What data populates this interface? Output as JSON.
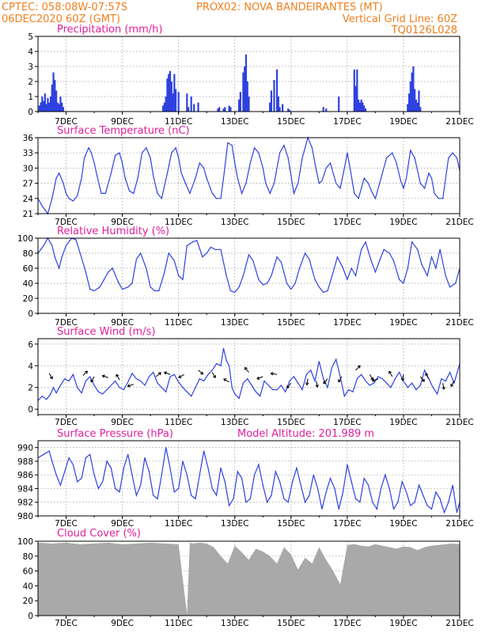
{
  "header": {
    "line1_left": "CPTEC:   058:08W-07:57S",
    "line1_right": "PROX02: NOVA BANDEIRANTES (MT)",
    "line2_left": "06DEC2020 60Z (GMT)",
    "line2_right": "Vertical Grid Line: 60Z",
    "line3_right": "TQ0126L028"
  },
  "colors": {
    "header": "#f07f1e",
    "title": "#e0209a",
    "line": "#2e41e0",
    "bar": "#2e41e0",
    "cloud": "#a9a9a9",
    "arrow": "#000000"
  },
  "x_axis": {
    "ticks": [
      "7DEC",
      "9DEC",
      "11DEC",
      "13DEC",
      "15DEC",
      "17DEC",
      "19DEC",
      "21DEC"
    ],
    "tick_days": [
      7,
      9,
      11,
      13,
      15,
      17,
      19,
      21
    ],
    "xlim": [
      6.0,
      21.0
    ]
  },
  "chart_data": [
    {
      "type": "bar",
      "title": "Precipitation (mm/h)",
      "ylim": [
        0,
        5
      ],
      "yticks": [
        0,
        1,
        2,
        3,
        4,
        5
      ],
      "x": [
        6.05,
        6.1,
        6.15,
        6.2,
        6.25,
        6.3,
        6.35,
        6.4,
        6.45,
        6.5,
        6.55,
        6.6,
        6.65,
        6.7,
        6.75,
        6.8,
        6.85,
        6.9,
        10.45,
        10.5,
        10.55,
        10.6,
        10.65,
        10.7,
        10.75,
        10.8,
        10.85,
        10.9,
        11.0,
        11.3,
        11.35,
        11.45,
        11.55,
        11.7,
        12.4,
        12.45,
        12.6,
        12.65,
        12.8,
        12.85,
        13.15,
        13.2,
        13.3,
        13.35,
        13.4,
        13.45,
        13.5,
        14.25,
        14.3,
        14.4,
        14.5,
        14.55,
        14.6,
        14.7,
        14.9,
        14.95,
        16.15,
        16.25,
        16.7,
        17.25,
        17.3,
        17.35,
        17.4,
        17.45,
        17.5,
        17.55,
        17.6,
        17.65,
        19.15,
        19.2,
        19.25,
        19.3,
        19.35,
        19.4,
        19.45,
        19.5,
        19.55,
        19.6
      ],
      "values": [
        0.4,
        0.6,
        1.0,
        0.7,
        1.2,
        0.5,
        0.9,
        0.6,
        1.0,
        1.8,
        2.6,
        2.1,
        1.4,
        0.6,
        0.5,
        1.0,
        0.6,
        0.3,
        0.4,
        0.6,
        1.0,
        2.2,
        2.5,
        2.7,
        2.0,
        1.2,
        2.5,
        1.5,
        1.3,
        1.2,
        0.3,
        1.0,
        0.5,
        0.6,
        0.2,
        0.3,
        0.2,
        0.3,
        0.4,
        0.3,
        0.8,
        1.3,
        2.6,
        3.0,
        3.8,
        2.0,
        1.0,
        0.6,
        1.4,
        2.1,
        2.8,
        1.0,
        0.3,
        0.5,
        0.2,
        0.1,
        0.3,
        0.2,
        1.0,
        2.8,
        1.7,
        2.8,
        0.8,
        0.6,
        0.8,
        0.6,
        0.4,
        0.2,
        0.5,
        1.2,
        2.0,
        2.6,
        3.0,
        1.5,
        0.8,
        0.6,
        1.4,
        0.3
      ]
    },
    {
      "type": "line",
      "title": "Surface Temperature (nC)",
      "ylim": [
        21,
        36
      ],
      "yticks": [
        21,
        24,
        27,
        30,
        33,
        36
      ],
      "x": [
        6.0,
        6.15,
        6.35,
        6.5,
        6.65,
        6.75,
        6.9,
        7.0,
        7.1,
        7.25,
        7.4,
        7.55,
        7.65,
        7.8,
        7.9,
        8.0,
        8.1,
        8.25,
        8.4,
        8.6,
        8.75,
        8.9,
        9.0,
        9.1,
        9.25,
        9.4,
        9.55,
        9.7,
        9.85,
        10.0,
        10.1,
        10.25,
        10.4,
        10.6,
        10.75,
        10.9,
        11.0,
        11.1,
        11.25,
        11.4,
        11.6,
        11.75,
        11.9,
        12.0,
        12.2,
        12.35,
        12.5,
        12.6,
        12.75,
        12.9,
        13.0,
        13.1,
        13.25,
        13.4,
        13.55,
        13.7,
        13.85,
        14.0,
        14.1,
        14.25,
        14.4,
        14.6,
        14.75,
        14.9,
        15.0,
        15.1,
        15.25,
        15.4,
        15.6,
        15.75,
        15.9,
        16.0,
        16.1,
        16.25,
        16.4,
        16.6,
        16.75,
        16.9,
        17.0,
        17.1,
        17.25,
        17.4,
        17.6,
        17.75,
        17.9,
        18.0,
        18.1,
        18.25,
        18.4,
        18.6,
        18.75,
        18.9,
        19.0,
        19.1,
        19.25,
        19.4,
        19.6,
        19.75,
        19.9,
        20.0,
        20.1,
        20.25,
        20.4,
        20.6,
        20.75,
        20.9,
        21.0
      ],
      "values": [
        24.0,
        22.5,
        21.0,
        24.0,
        28.0,
        29.0,
        27.0,
        25.0,
        24.0,
        23.5,
        24.5,
        28.0,
        32.0,
        34.0,
        33.0,
        31.0,
        28.5,
        25.0,
        25.0,
        29.0,
        32.5,
        33.0,
        31.0,
        28.0,
        25.5,
        25.0,
        28.0,
        33.0,
        34.0,
        32.0,
        28.5,
        25.0,
        24.0,
        29.0,
        33.0,
        34.0,
        32.0,
        29.0,
        27.0,
        25.0,
        28.0,
        31.0,
        30.0,
        28.0,
        25.0,
        24.0,
        24.0,
        28.0,
        35.0,
        34.5,
        31.0,
        28.0,
        25.0,
        27.0,
        31.0,
        34.0,
        33.0,
        30.0,
        27.0,
        25.0,
        27.0,
        33.0,
        34.5,
        32.0,
        28.5,
        25.0,
        27.0,
        32.0,
        36.0,
        34.0,
        29.5,
        27.0,
        27.5,
        30.0,
        31.0,
        27.0,
        26.0,
        30.0,
        33.0,
        30.0,
        25.0,
        24.0,
        28.0,
        27.0,
        25.0,
        24.0,
        26.0,
        29.0,
        32.0,
        33.0,
        31.0,
        27.5,
        26.0,
        28.0,
        33.5,
        32.0,
        27.0,
        26.0,
        29.0,
        28.0,
        25.0,
        24.0,
        24.0,
        32.0,
        33.0,
        32.0,
        29.5
      ]
    },
    {
      "type": "line",
      "title": "Relative Humidity (%)",
      "ylim": [
        0,
        100
      ],
      "yticks": [
        0,
        20,
        40,
        60,
        80,
        100
      ],
      "x": [
        6.0,
        6.2,
        6.35,
        6.5,
        6.6,
        6.75,
        6.85,
        7.0,
        7.2,
        7.35,
        7.5,
        7.7,
        7.85,
        8.0,
        8.2,
        8.35,
        8.5,
        8.65,
        8.85,
        9.0,
        9.2,
        9.35,
        9.5,
        9.65,
        9.85,
        10.0,
        10.15,
        10.3,
        10.5,
        10.65,
        10.85,
        11.0,
        11.15,
        11.3,
        11.5,
        11.65,
        11.85,
        12.0,
        12.15,
        12.3,
        12.5,
        12.7,
        12.85,
        13.0,
        13.15,
        13.3,
        13.5,
        13.65,
        13.85,
        14.0,
        14.15,
        14.3,
        14.5,
        14.65,
        14.85,
        15.0,
        15.15,
        15.3,
        15.5,
        15.65,
        15.85,
        16.0,
        16.15,
        16.3,
        16.5,
        16.65,
        16.85,
        17.0,
        17.15,
        17.3,
        17.5,
        17.65,
        17.85,
        18.0,
        18.15,
        18.3,
        18.5,
        18.65,
        18.85,
        19.0,
        19.15,
        19.3,
        19.5,
        19.65,
        19.85,
        20.0,
        20.15,
        20.3,
        20.5,
        20.65,
        20.85,
        21.0
      ],
      "values": [
        80.0,
        90.0,
        100.0,
        90.0,
        75.0,
        60.0,
        75.0,
        90.0,
        100.0,
        98.0,
        80.0,
        55.0,
        32.0,
        30.0,
        35.0,
        45.0,
        55.0,
        60.0,
        42.0,
        32.0,
        35.0,
        40.0,
        72.0,
        80.0,
        60.0,
        35.0,
        30.0,
        30.0,
        55.0,
        80.0,
        70.0,
        50.0,
        45.0,
        90.0,
        95.0,
        97.0,
        75.0,
        80.0,
        88.0,
        85.0,
        85.0,
        50.0,
        30.0,
        28.0,
        35.0,
        50.0,
        78.0,
        70.0,
        45.0,
        38.0,
        40.0,
        50.0,
        75.0,
        68.0,
        40.0,
        32.0,
        40.0,
        60.0,
        80.0,
        72.0,
        45.0,
        35.0,
        28.0,
        30.0,
        55.0,
        75.0,
        60.0,
        45.0,
        60.0,
        50.0,
        85.0,
        95.0,
        70.0,
        55.0,
        70.0,
        85.0,
        80.0,
        70.0,
        45.0,
        40.0,
        60.0,
        95.0,
        85.0,
        65.0,
        50.0,
        75.0,
        60.0,
        85.0,
        50.0,
        35.0,
        40.0,
        60.0
      ]
    },
    {
      "type": "line",
      "title": "Surface Wind (m/s)",
      "ylim": [
        -0.5,
        6.5
      ],
      "yticks": [
        0,
        2,
        4,
        6
      ],
      "x": [
        6.0,
        6.15,
        6.3,
        6.45,
        6.55,
        6.65,
        6.8,
        6.95,
        7.1,
        7.25,
        7.4,
        7.55,
        7.7,
        7.85,
        8.0,
        8.15,
        8.3,
        8.45,
        8.6,
        8.75,
        8.9,
        9.05,
        9.2,
        9.35,
        9.5,
        9.65,
        9.8,
        9.95,
        10.1,
        10.25,
        10.4,
        10.55,
        10.7,
        10.85,
        11.0,
        11.15,
        11.3,
        11.45,
        11.6,
        11.75,
        11.9,
        12.05,
        12.2,
        12.35,
        12.5,
        12.6,
        12.7,
        12.8,
        12.9,
        13.0,
        13.15,
        13.3,
        13.45,
        13.6,
        13.75,
        13.9,
        14.05,
        14.2,
        14.35,
        14.5,
        14.65,
        14.8,
        14.95,
        15.1,
        15.25,
        15.4,
        15.55,
        15.7,
        15.85,
        16.0,
        16.15,
        16.3,
        16.45,
        16.6,
        16.75,
        16.9,
        17.05,
        17.2,
        17.35,
        17.5,
        17.65,
        17.8,
        17.95,
        18.1,
        18.25,
        18.4,
        18.55,
        18.7,
        18.85,
        19.0,
        19.15,
        19.3,
        19.45,
        19.6,
        19.75,
        19.9,
        20.05,
        20.2,
        20.35,
        20.5,
        20.65,
        20.8,
        21.0
      ],
      "values": [
        0.8,
        1.2,
        0.9,
        1.4,
        2.0,
        1.5,
        2.2,
        2.8,
        2.6,
        3.2,
        2.0,
        1.5,
        2.6,
        3.0,
        2.2,
        1.6,
        1.4,
        1.8,
        2.2,
        2.6,
        2.0,
        1.8,
        2.5,
        3.3,
        2.8,
        2.6,
        2.2,
        3.0,
        3.4,
        2.4,
        2.0,
        1.6,
        3.0,
        3.2,
        2.5,
        2.0,
        1.6,
        1.2,
        2.0,
        2.8,
        2.6,
        3.2,
        3.6,
        4.2,
        4.0,
        5.6,
        4.5,
        4.0,
        2.0,
        1.4,
        1.0,
        2.4,
        2.8,
        2.2,
        1.6,
        1.2,
        2.6,
        2.2,
        1.8,
        1.8,
        2.2,
        1.6,
        2.6,
        3.0,
        2.4,
        1.8,
        3.2,
        3.6,
        2.6,
        4.4,
        2.8,
        2.0,
        3.8,
        4.6,
        3.0,
        1.2,
        1.8,
        1.6,
        2.8,
        3.2,
        2.6,
        2.2,
        2.4,
        3.0,
        2.8,
        2.4,
        2.0,
        2.8,
        3.4,
        2.6,
        2.0,
        2.4,
        1.8,
        2.2,
        3.6,
        2.8,
        2.0,
        1.4,
        2.8,
        2.6,
        3.4,
        2.4,
        4.2
      ]
    },
    {
      "type": "line",
      "title": "Surface Pressure (hPa)",
      "annotation": "Model Altitude: 201.989 m",
      "ylim": [
        980,
        991
      ],
      "yticks": [
        980,
        982,
        984,
        986,
        988,
        990
      ],
      "x": [
        6.0,
        6.2,
        6.4,
        6.5,
        6.65,
        6.8,
        6.95,
        7.1,
        7.25,
        7.4,
        7.55,
        7.7,
        7.85,
        8.0,
        8.15,
        8.3,
        8.45,
        8.6,
        8.75,
        8.9,
        9.05,
        9.2,
        9.35,
        9.5,
        9.65,
        9.8,
        9.95,
        10.1,
        10.25,
        10.4,
        10.55,
        10.7,
        10.85,
        11.0,
        11.15,
        11.3,
        11.45,
        11.6,
        11.75,
        11.9,
        12.05,
        12.2,
        12.35,
        12.5,
        12.65,
        12.8,
        12.95,
        13.1,
        13.25,
        13.4,
        13.55,
        13.7,
        13.85,
        14.0,
        14.15,
        14.3,
        14.45,
        14.6,
        14.75,
        14.9,
        15.05,
        15.2,
        15.35,
        15.5,
        15.65,
        15.8,
        15.95,
        16.1,
        16.25,
        16.4,
        16.55,
        16.7,
        16.85,
        17.0,
        17.15,
        17.3,
        17.45,
        17.6,
        17.75,
        17.9,
        18.05,
        18.2,
        18.35,
        18.5,
        18.65,
        18.8,
        18.95,
        19.1,
        19.25,
        19.4,
        19.55,
        19.7,
        19.85,
        20.0,
        20.15,
        20.3,
        20.45,
        20.6,
        20.75,
        20.9,
        21.0
      ],
      "values": [
        988.5,
        989.0,
        989.5,
        988.0,
        986.0,
        984.5,
        986.5,
        988.5,
        987.5,
        985.0,
        985.5,
        988.5,
        989.0,
        986.0,
        984.0,
        985.0,
        988.0,
        987.0,
        984.0,
        983.5,
        987.0,
        989.0,
        986.0,
        983.0,
        984.5,
        988.5,
        986.5,
        983.0,
        982.5,
        986.0,
        990.0,
        987.0,
        983.5,
        984.0,
        988.0,
        986.0,
        983.0,
        982.5,
        986.0,
        989.5,
        987.0,
        984.0,
        983.0,
        987.0,
        985.0,
        981.5,
        982.5,
        986.5,
        985.5,
        982.0,
        982.5,
        986.0,
        987.5,
        984.5,
        982.0,
        983.0,
        986.5,
        985.0,
        982.5,
        982.0,
        985.0,
        987.0,
        984.5,
        982.0,
        983.0,
        986.0,
        984.0,
        981.0,
        983.5,
        985.5,
        984.0,
        981.0,
        983.5,
        987.5,
        985.0,
        982.5,
        982.0,
        985.5,
        984.5,
        982.0,
        981.0,
        984.0,
        986.0,
        984.0,
        981.0,
        982.0,
        985.0,
        983.5,
        981.5,
        982.0,
        984.5,
        983.0,
        981.5,
        981.0,
        983.5,
        982.5,
        980.5,
        982.0,
        984.5,
        980.5,
        982.0
      ]
    },
    {
      "type": "area",
      "title": "Cloud Cover (%)",
      "ylim": [
        0,
        100
      ],
      "yticks": [
        0,
        20,
        40,
        60,
        80,
        100
      ],
      "x": [
        6.0,
        6.5,
        7.0,
        7.5,
        8.0,
        8.5,
        9.0,
        9.5,
        10.0,
        10.5,
        11.0,
        11.3,
        11.4,
        11.5,
        11.75,
        12.0,
        12.25,
        12.5,
        12.75,
        13.0,
        13.25,
        13.5,
        13.75,
        14.0,
        14.25,
        14.5,
        14.75,
        15.0,
        15.25,
        15.5,
        15.75,
        16.0,
        16.25,
        16.5,
        16.75,
        17.0,
        17.25,
        17.5,
        17.75,
        18.0,
        18.25,
        18.5,
        18.75,
        19.0,
        19.25,
        19.5,
        19.75,
        20.0,
        20.25,
        20.5,
        20.75,
        21.0
      ],
      "values": [
        98,
        97,
        98,
        96,
        97,
        98,
        96,
        97,
        98,
        97,
        96,
        2,
        98,
        97,
        98,
        97,
        92,
        80,
        70,
        94,
        85,
        75,
        90,
        86,
        80,
        70,
        92,
        82,
        62,
        78,
        70,
        92,
        75,
        60,
        42,
        95,
        96,
        94,
        93,
        96,
        94,
        92,
        90,
        93,
        92,
        88,
        92,
        94,
        95,
        96,
        97,
        96
      ]
    }
  ]
}
